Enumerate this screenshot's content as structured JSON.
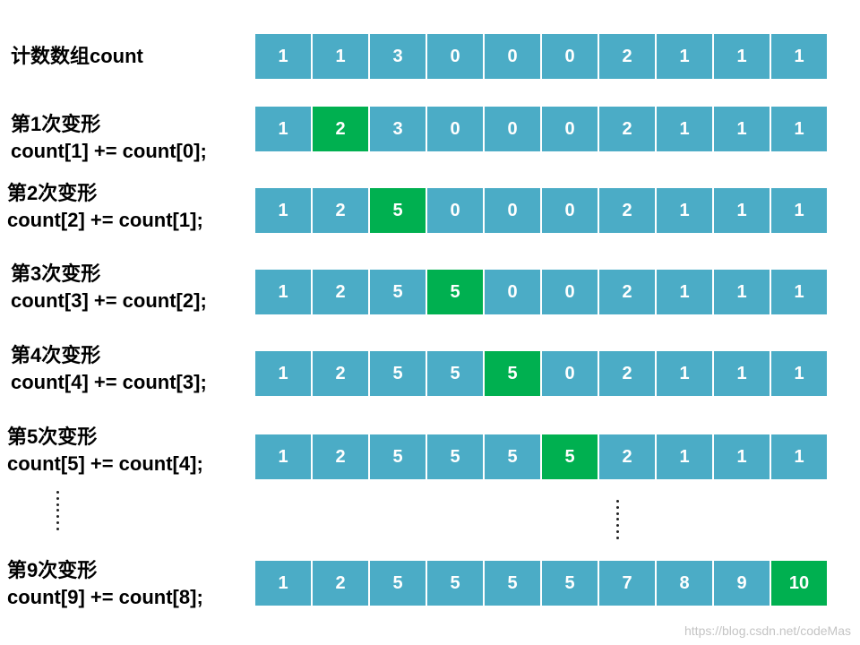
{
  "colors": {
    "cell": "#4BACC6",
    "highlight": "#00B050"
  },
  "title_label": "计数数组count",
  "rows": [
    {
      "title": "计数数组count",
      "code": "",
      "values": [
        "1",
        "1",
        "3",
        "0",
        "0",
        "0",
        "2",
        "1",
        "1",
        "1"
      ],
      "highlight": -1
    },
    {
      "title": "第1次变形",
      "code": "count[1] += count[0];",
      "values": [
        "1",
        "2",
        "3",
        "0",
        "0",
        "0",
        "2",
        "1",
        "1",
        "1"
      ],
      "highlight": 1
    },
    {
      "title": "第2次变形",
      "code": "count[2] += count[1];",
      "values": [
        "1",
        "2",
        "5",
        "0",
        "0",
        "0",
        "2",
        "1",
        "1",
        "1"
      ],
      "highlight": 2
    },
    {
      "title": "第3次变形",
      "code": "count[3] += count[2];",
      "values": [
        "1",
        "2",
        "5",
        "5",
        "0",
        "0",
        "2",
        "1",
        "1",
        "1"
      ],
      "highlight": 3
    },
    {
      "title": "第4次变形",
      "code": "count[4] += count[3];",
      "values": [
        "1",
        "2",
        "5",
        "5",
        "5",
        "0",
        "2",
        "1",
        "1",
        "1"
      ],
      "highlight": 4
    },
    {
      "title": "第5次变形",
      "code": "count[5] += count[4];",
      "values": [
        "1",
        "2",
        "5",
        "5",
        "5",
        "5",
        "2",
        "1",
        "1",
        "1"
      ],
      "highlight": 5
    },
    {
      "title": "第9次变形",
      "code": "count[9] += count[8];",
      "values": [
        "1",
        "2",
        "5",
        "5",
        "5",
        "5",
        "7",
        "8",
        "9",
        "10"
      ],
      "highlight": 9
    }
  ],
  "watermark": "https://blog.csdn.net/codeMas"
}
